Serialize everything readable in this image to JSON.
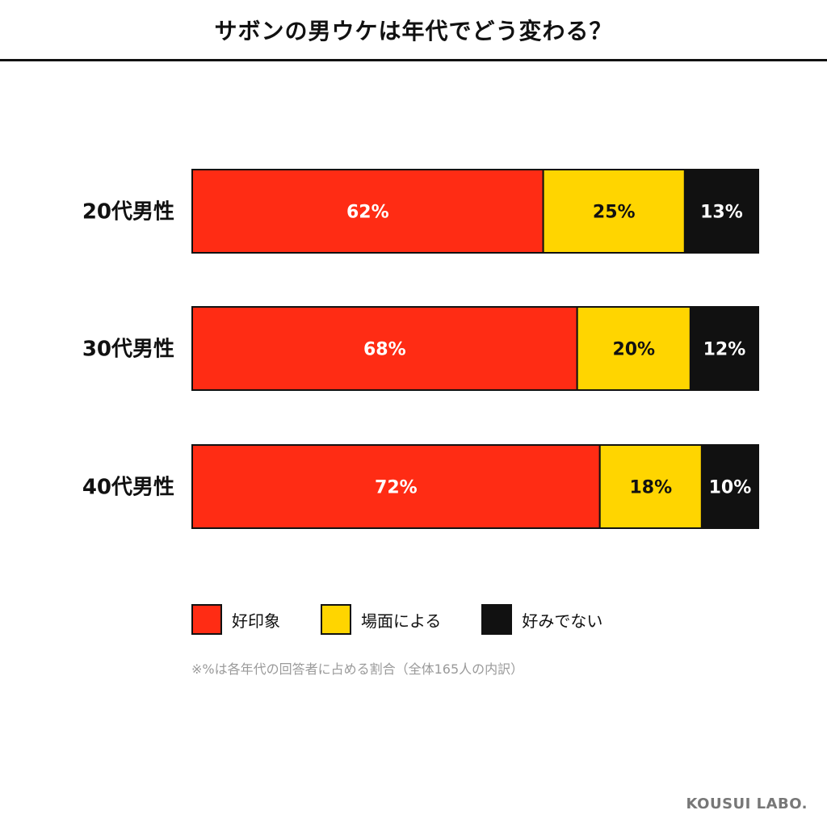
{
  "chart_data": {
    "type": "bar",
    "orientation": "horizontal",
    "stacked": true,
    "title": "サボンの男ウケは年代でどう変わる？",
    "categories": [
      "20代男性",
      "30代男性",
      "40代男性"
    ],
    "series": [
      {
        "name": "好印象",
        "values": [
          62,
          68,
          72
        ],
        "labels": [
          "62%",
          "68%",
          "72%"
        ],
        "color": "#ff2c14",
        "label_color": "#ffffff"
      },
      {
        "name": "場面による",
        "values": [
          25,
          20,
          18
        ],
        "labels": [
          "25%",
          "20%",
          "18%"
        ],
        "color": "#ffd500",
        "label_color": "#111111"
      },
      {
        "name": "好みでない",
        "values": [
          13,
          12,
          10
        ],
        "labels": [
          "13%",
          "12%",
          "10%"
        ],
        "color": "#111111",
        "label_color": "#ffffff"
      }
    ],
    "xlim": [
      0,
      100
    ],
    "grid": false,
    "legend_position": "bottom"
  },
  "note": "※%は各年代の回答者に占める割合（全体165人の内訳）",
  "brand": "KOUSUI LABO.",
  "colors": {
    "border": "#111111",
    "note": "#9a9a9a",
    "brand": "#777777"
  }
}
